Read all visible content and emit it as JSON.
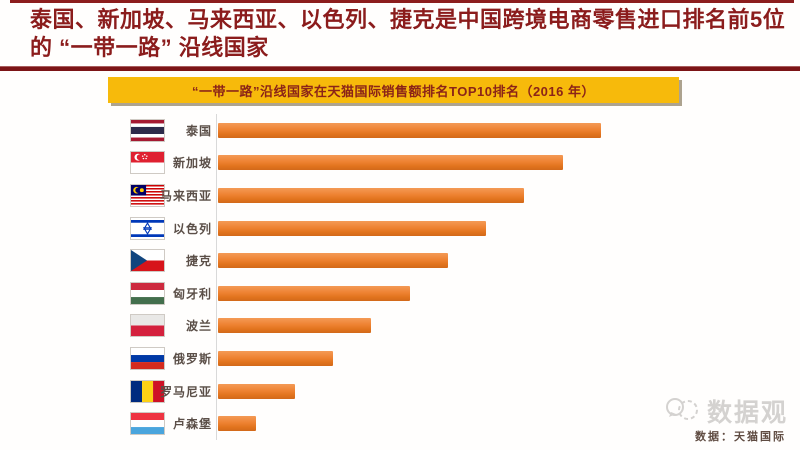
{
  "header": {
    "title": "泰国、新加坡、马来西亚、以色列、捷克是中国跨境电商零售进口排名前5位的 “一带一路” 沿线国家",
    "title_color": "#8b1c1c"
  },
  "banner": {
    "label": "“一带一路”沿线国家在天猫国际销售额排名TOP10排名（2016 年）",
    "background": "#f7ba0b",
    "text_color": "#8b2418"
  },
  "chart_data": {
    "type": "bar",
    "orientation": "horizontal",
    "title": "“一带一路”沿线国家在天猫国际销售额排名TOP10排名（2016 年）",
    "categories": [
      "泰国",
      "新加坡",
      "马来西亚",
      "以色列",
      "捷克",
      "匈牙利",
      "波兰",
      "俄罗斯",
      "罗马尼亚",
      "卢森堡"
    ],
    "values": [
      10,
      9,
      8,
      7,
      6,
      5,
      4,
      3,
      2,
      1
    ],
    "value_note": "No numeric axis shown; bar lengths encode ranking position from 1st (longest) to 10th (shortest)",
    "flags": [
      "thailand",
      "singapore",
      "malaysia",
      "israel",
      "czech",
      "hungary",
      "poland",
      "russia",
      "romania",
      "luxembourg"
    ],
    "bar_color": "#ed7d31",
    "xlim": [
      0,
      10.5
    ],
    "grid": false,
    "legend": false
  },
  "footer": {
    "watermark": "数据观",
    "source": "数据：天猫国际"
  }
}
